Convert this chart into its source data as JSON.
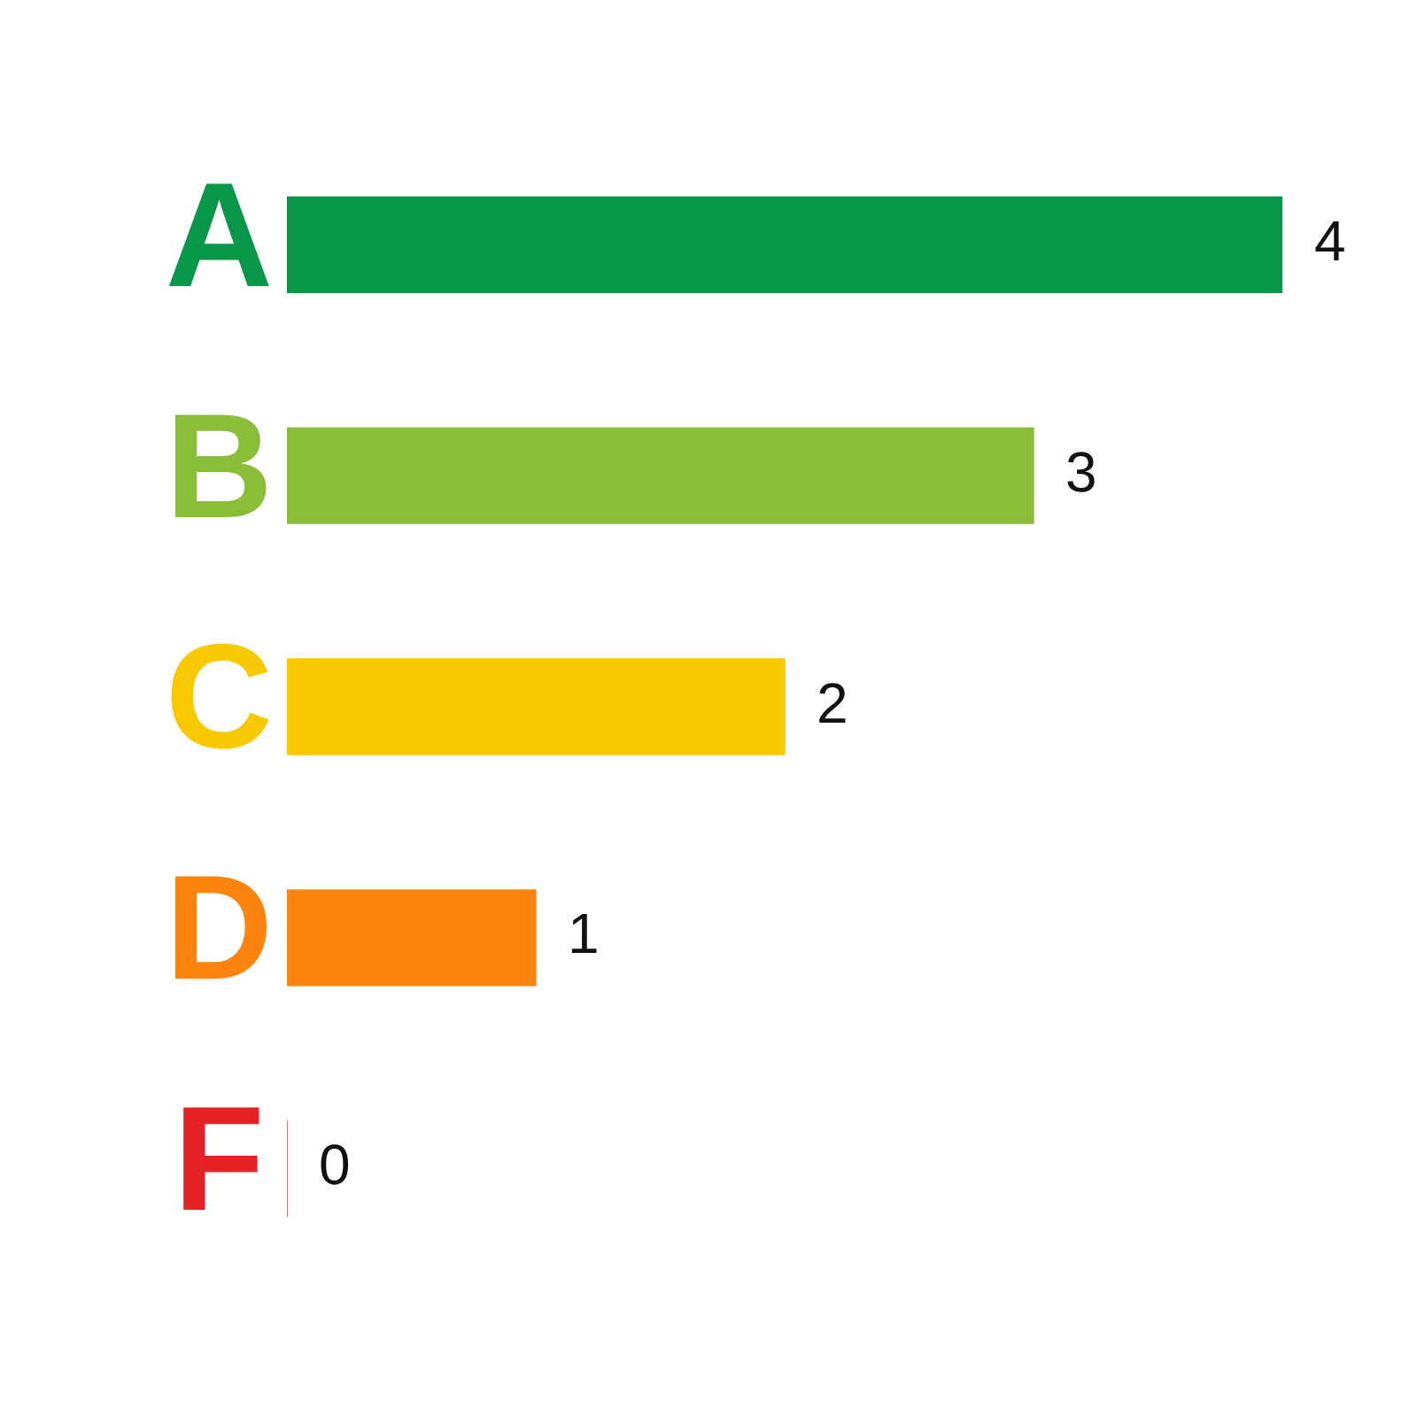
{
  "chart_data": {
    "type": "bar",
    "orientation": "horizontal",
    "data_labels": true,
    "categories": [
      "A",
      "B",
      "C",
      "D",
      "F"
    ],
    "values": [
      4,
      3,
      2,
      1,
      0
    ],
    "colors": [
      "#089649",
      "#8abd38",
      "#f9c900",
      "#fe8410",
      "#e42124"
    ]
  }
}
